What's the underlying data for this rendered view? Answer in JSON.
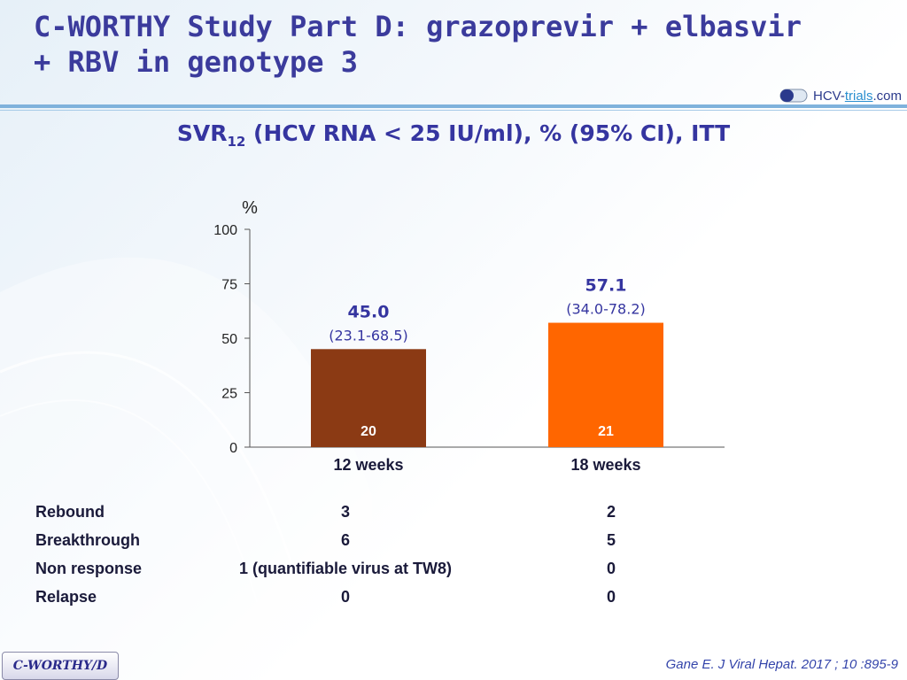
{
  "title_line1": "C-WORTHY Study Part D: grazoprevir + elbasvir",
  "title_line2": "+ RBV in genotype 3",
  "logo": {
    "main": "HCV-",
    "accent": "trials",
    "suffix": ".com"
  },
  "subtitle": {
    "pre": "SVR",
    "sub": "12",
    "post": " (HCV RNA < 25 IU/ml), % (95% CI), ITT"
  },
  "chart_data": {
    "type": "bar",
    "ylabel": "%",
    "ylim": [
      0,
      100
    ],
    "yticks": [
      0,
      25,
      50,
      75,
      100
    ],
    "categories": [
      "12 weeks",
      "18 weeks"
    ],
    "values": [
      45.0,
      57.1
    ],
    "value_labels": [
      "45.0",
      "57.1"
    ],
    "ci_labels": [
      "(23.1-68.5)",
      "(34.0-78.2)"
    ],
    "n_labels": [
      "20",
      "21"
    ],
    "colors": [
      "#8b3a14",
      "#ff6600"
    ]
  },
  "table": {
    "rows": [
      {
        "label": "Rebound",
        "values": [
          "3",
          "2"
        ]
      },
      {
        "label": "Breakthrough",
        "values": [
          "6",
          "5"
        ]
      },
      {
        "label": "Non response",
        "values": [
          "1 (quantifiable virus at TW8)",
          "0"
        ]
      },
      {
        "label": "Relapse",
        "values": [
          "0",
          "0"
        ]
      }
    ]
  },
  "footer_tag": "C-WORTHY/D",
  "citation": "Gane E. J Viral Hepat. 2017 ; 10 :895-9"
}
